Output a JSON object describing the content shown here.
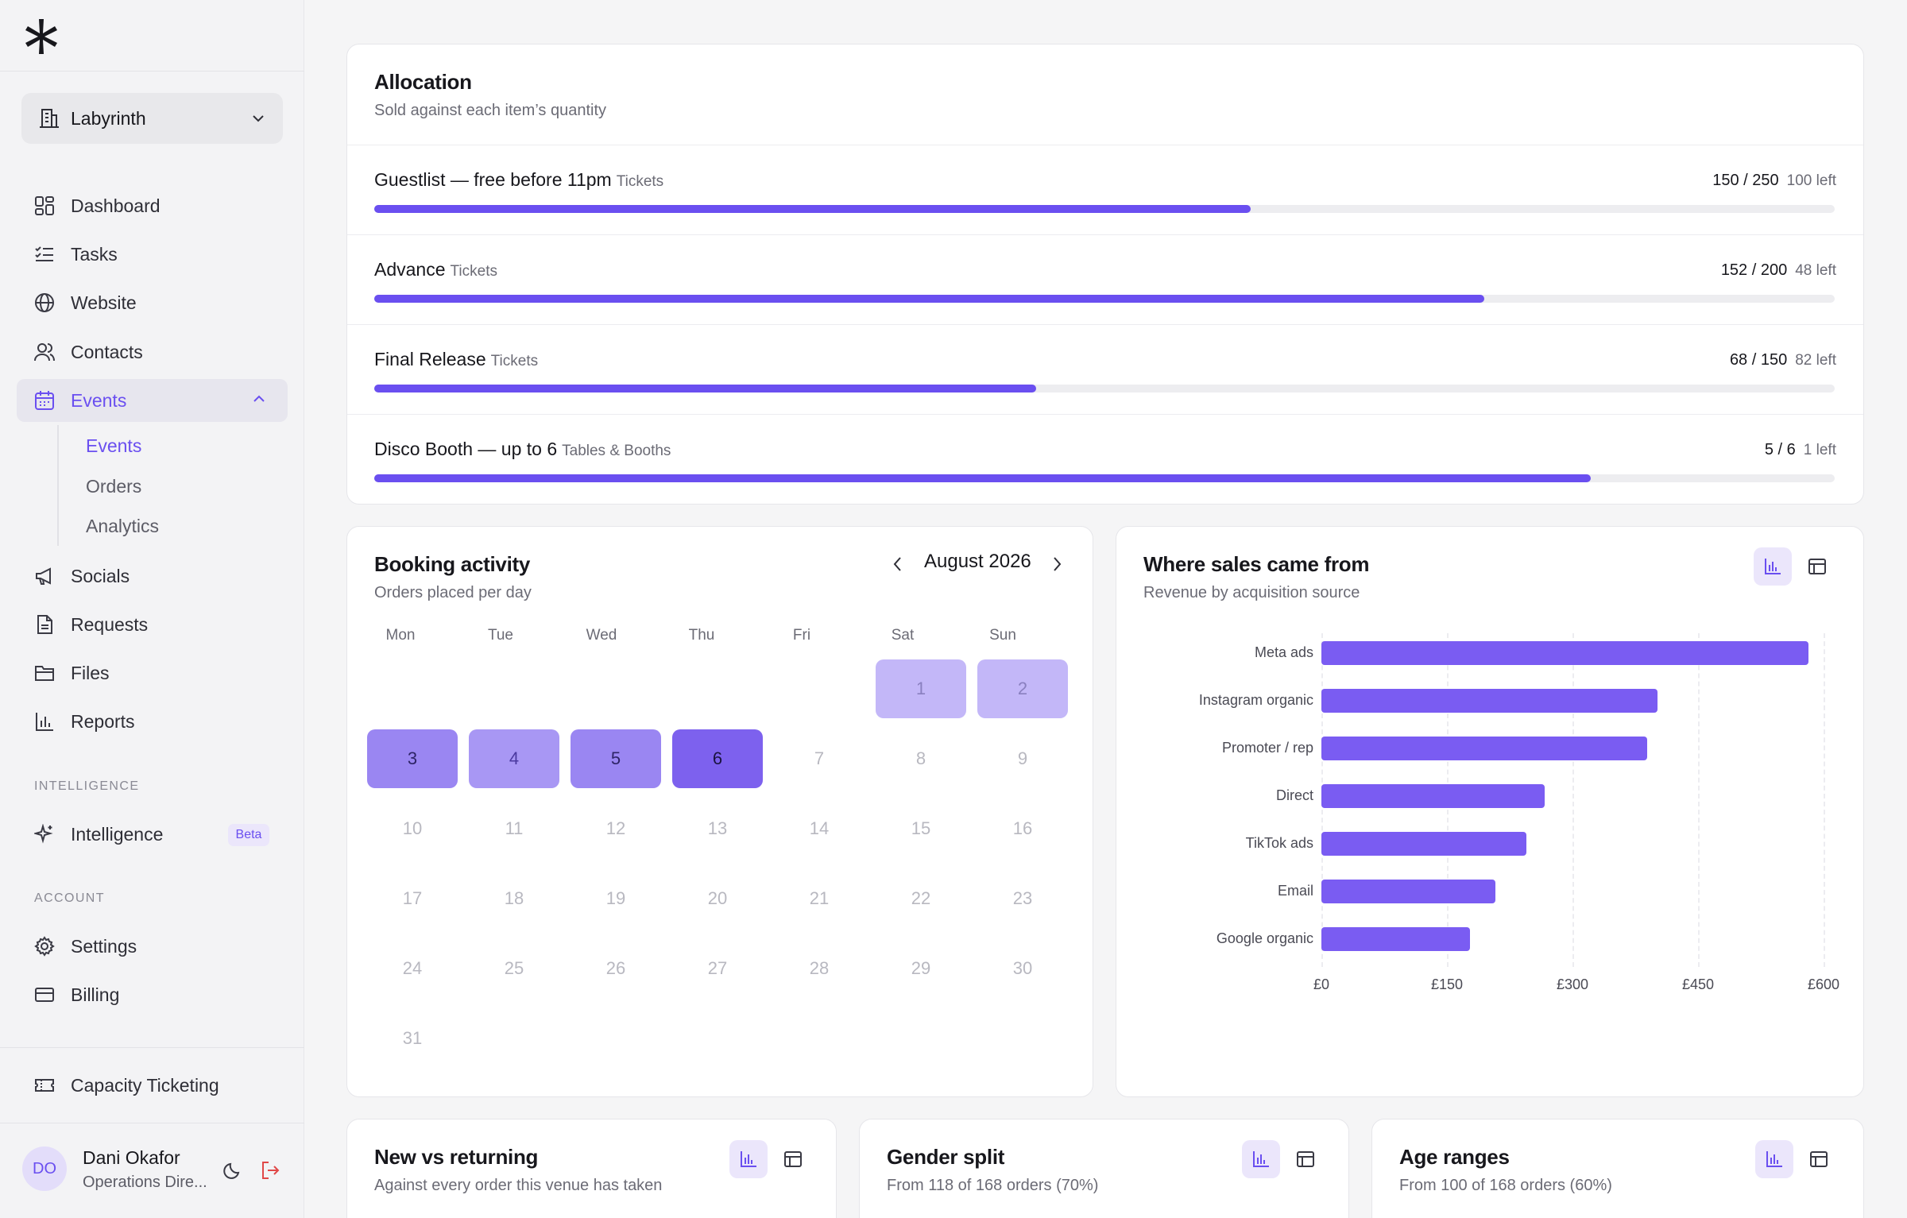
{
  "sidebar": {
    "workspace": "Labyrinth",
    "nav": [
      {
        "label": "Dashboard",
        "icon": "grid-icon"
      },
      {
        "label": "Tasks",
        "icon": "checklist-icon"
      },
      {
        "label": "Website",
        "icon": "globe-icon"
      },
      {
        "label": "Contacts",
        "icon": "users-icon"
      },
      {
        "label": "Events",
        "icon": "calendar-icon",
        "active": true
      }
    ],
    "events_sub": [
      "Events",
      "Orders",
      "Analytics"
    ],
    "nav2": [
      {
        "label": "Socials",
        "icon": "megaphone-icon"
      },
      {
        "label": "Requests",
        "icon": "document-icon"
      },
      {
        "label": "Files",
        "icon": "folder-icon"
      },
      {
        "label": "Reports",
        "icon": "bar-chart-icon"
      }
    ],
    "section_intelligence": "INTELLIGENCE",
    "intelligence": {
      "label": "Intelligence",
      "badge": "Beta"
    },
    "section_account": "ACCOUNT",
    "account": [
      {
        "label": "Settings"
      },
      {
        "label": "Billing"
      }
    ],
    "capacity": "Capacity Ticketing",
    "user": {
      "initials": "DO",
      "name": "Dani Okafor",
      "role": "Operations Dire..."
    }
  },
  "allocation": {
    "title": "Allocation",
    "subtitle": "Sold against each item’s quantity",
    "items": [
      {
        "name": "Guestlist — free before 11pm",
        "category": "Tickets",
        "count": "150 / 250",
        "left": "100 left",
        "fraction": 0.6
      },
      {
        "name": "Advance",
        "category": "Tickets",
        "count": "152 / 200",
        "left": "48 left",
        "fraction": 0.76
      },
      {
        "name": "Final Release",
        "category": "Tickets",
        "count": "68 / 150",
        "left": "82 left",
        "fraction": 0.453
      },
      {
        "name": "Disco Booth — up to 6",
        "category": "Tables & Booths",
        "count": "5 / 6",
        "left": "1 left",
        "fraction": 0.833
      }
    ]
  },
  "booking": {
    "title": "Booking activity",
    "subtitle": "Orders placed per day",
    "month": "August 2026",
    "weekdays": [
      "Mon",
      "Tue",
      "Wed",
      "Thu",
      "Fri",
      "Sat",
      "Sun"
    ],
    "first_weekday_index": 5,
    "days": 31,
    "activity": {
      "1": 1,
      "2": 1,
      "3": 3,
      "4": 2,
      "5": 3,
      "6": 4
    }
  },
  "sales": {
    "title": "Where sales came from",
    "subtitle": "Revenue by acquisition source"
  },
  "chart_data": {
    "type": "bar",
    "orientation": "horizontal",
    "categories": [
      "Meta ads",
      "Instagram organic",
      "Promoter / rep",
      "Direct",
      "TikTok ads",
      "Email",
      "Google organic"
    ],
    "values": [
      582,
      402,
      389,
      267,
      245,
      208,
      178
    ],
    "xlim": [
      0,
      600
    ],
    "xticks": [
      "£0",
      "£150",
      "£300",
      "£450",
      "£600"
    ],
    "grid": true,
    "color": "#7a5cf2"
  },
  "bottom": [
    {
      "title": "New vs returning",
      "subtitle": "Against every order this venue has taken"
    },
    {
      "title": "Gender split",
      "subtitle": "From 118 of 168 orders (70%)"
    },
    {
      "title": "Age ranges",
      "subtitle": "From 100 of 168 orders (60%)"
    }
  ]
}
